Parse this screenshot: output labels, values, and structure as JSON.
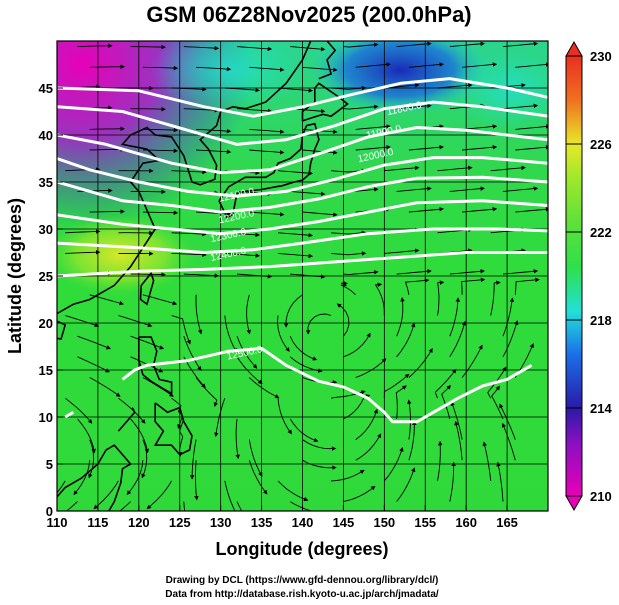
{
  "title": "GSM 06Z28Nov2025 (200.0hPa)",
  "xlabel": "Longitude (degrees)",
  "ylabel": "Latitude  (degrees)",
  "credit_line1": "Drawing by DCL (https://www.gfd-dennou.org/library/dcl/)",
  "credit_line2": "Data from http://database.rish.kyoto-u.ac.jp/arch/jmadata/",
  "chart_data": {
    "type": "heatmap",
    "title": "GSM 06Z28Nov2025 (200.0hPa)",
    "xlabel": "Longitude (degrees)",
    "ylabel": "Latitude  (degrees)",
    "xlim": [
      110,
      170
    ],
    "ylim": [
      0,
      50
    ],
    "x_ticks": [
      "110",
      "115",
      "120",
      "125",
      "130",
      "135",
      "140",
      "145",
      "150",
      "155",
      "160",
      "165"
    ],
    "y_ticks": [
      "0",
      "5",
      "10",
      "15",
      "20",
      "25",
      "30",
      "35",
      "40",
      "45"
    ],
    "grid": true,
    "colorbar": {
      "min": 210,
      "max": 230,
      "ticks": [
        "210",
        "214",
        "218",
        "222",
        "226",
        "230"
      ],
      "colors": [
        "#e800b8",
        "#2a1aa8",
        "#1b6ee8",
        "#22e0d8",
        "#2ee04a",
        "#7ee82a",
        "#e8e82a",
        "#f07020",
        "#e83020"
      ]
    },
    "contour_labels": [
      "11800.0",
      "11900.0",
      "12000.0",
      "12100.0",
      "12200.0",
      "12300.0",
      "12400.0",
      "12500.0"
    ],
    "streamlines": true
  }
}
